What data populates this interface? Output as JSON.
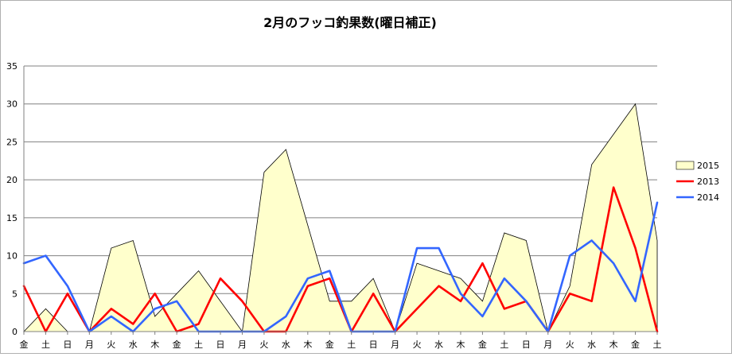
{
  "chart_data": {
    "type": "line",
    "title": "2月のフッコ釣果数(曜日補正)",
    "xlabel": "",
    "ylabel": "",
    "ylim": [
      0,
      35
    ],
    "yticks": [
      "0",
      "5",
      "10",
      "15",
      "20",
      "25",
      "30",
      "35"
    ],
    "grid": true,
    "legend_position": "right",
    "categories": [
      "金",
      "土",
      "日",
      "月",
      "火",
      "水",
      "木",
      "金",
      "土",
      "日",
      "月",
      "火",
      "水",
      "木",
      "金",
      "土",
      "日",
      "月",
      "火",
      "水",
      "木",
      "金",
      "土",
      "日",
      "月",
      "火",
      "水",
      "木",
      "金",
      "土"
    ],
    "series": [
      {
        "name": "2015",
        "kind": "area",
        "color": "#ffffcc",
        "stroke": "#000000",
        "values": [
          0,
          3,
          0,
          0,
          11,
          12,
          2,
          5,
          8,
          4,
          0,
          21,
          24,
          14,
          4,
          4,
          7,
          0,
          9,
          8,
          7,
          4,
          13,
          12,
          0,
          6,
          22,
          26,
          30,
          12
        ]
      },
      {
        "name": "2013",
        "kind": "line",
        "color": "#ff0000",
        "values": [
          6,
          0,
          5,
          0,
          3,
          1,
          5,
          0,
          1,
          7,
          4,
          0,
          0,
          6,
          7,
          0,
          5,
          0,
          3,
          6,
          4,
          9,
          3,
          4,
          0,
          5,
          4,
          19,
          11,
          0
        ]
      },
      {
        "name": "2014",
        "kind": "line",
        "color": "#3366ff",
        "values": [
          9,
          10,
          6,
          0,
          2,
          0,
          3,
          4,
          0,
          0,
          0,
          0,
          2,
          7,
          8,
          0,
          0,
          0,
          11,
          11,
          5,
          2,
          7,
          4,
          0,
          10,
          12,
          9,
          4,
          17
        ]
      }
    ]
  }
}
